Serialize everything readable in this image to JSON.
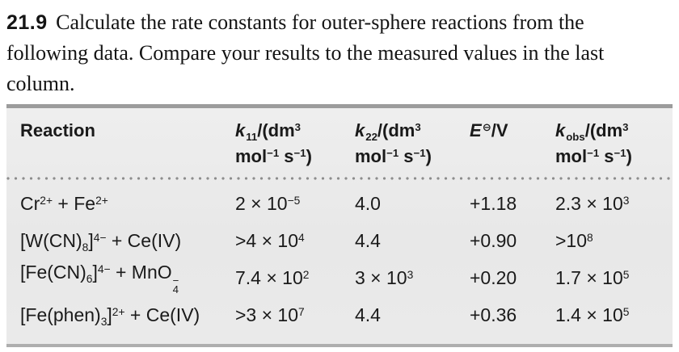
{
  "problem": {
    "number": "21.9",
    "text": "Calculate the rate constants for outer-sphere reactions from the following data. Compare your results to the measured values in the last column."
  },
  "table": {
    "columns": [
      {
        "id": "reaction",
        "label_html": "Reaction"
      },
      {
        "id": "k11",
        "label_html": "<i>k</i><sub>11</sub>/(dm<sup>3</sup><br>mol<sup>−1</sup> s<sup>−1</sup>)"
      },
      {
        "id": "k22",
        "label_html": "<i>k</i><sub>22</sub>/(dm<sup>3</sup><br>mol<sup>−1</sup> s<sup>−1</sup>)"
      },
      {
        "id": "E",
        "label_html": "<i>E</i><sup class=\"plimsoll\">⊖</sup>/V"
      },
      {
        "id": "kobs",
        "label_html": "<i>k</i><sub>obs</sub>/(dm<sup>3</sup><br>mol<sup>−1</sup> s<sup>−1</sup>)"
      }
    ],
    "rows": [
      {
        "reaction": "Cr<sup>2+</sup> + Fe<sup>2+</sup>",
        "k11": "2 × 10<sup>−5</sup>",
        "k22": "4.0",
        "E": "+1.18",
        "kobs": "2.3 × 10<sup>3</sup>"
      },
      {
        "reaction": "[W(CN)<sub>8</sub>]<sup>4−</sup> + Ce(IV)",
        "k11": "&gt;4 × 10<sup>4</sup>",
        "k22": "4.4",
        "E": "+0.90",
        "kobs": "&gt;10<sup>8</sup>"
      },
      {
        "reaction": "[Fe(CN)<sub>6</sub>]<sup>4−</sup> + MnO<span class=\"stk\"><span>−</span><span>4</span></span>",
        "k11": "7.4 × 10<sup>2</sup>",
        "k22": "3 × 10<sup>3</sup>",
        "E": "+0.20",
        "kobs": "1.7 × 10<sup>5</sup>"
      },
      {
        "reaction": "[Fe(phen)<sub>3</sub>]<sup>2+</sup> + Ce(IV)",
        "k11": "&gt;3 × 10<sup>7</sup>",
        "k22": "4.4",
        "E": "+0.36",
        "kobs": "1.4 × 10<sup>5</sup>"
      }
    ]
  },
  "colors": {
    "table_background": "#e9e9e9",
    "table_border_top": "#9c9c9c",
    "table_border_bottom": "#aeaeae",
    "dotted_rule": "#8d8d8d",
    "text": "#1a1a1a"
  }
}
